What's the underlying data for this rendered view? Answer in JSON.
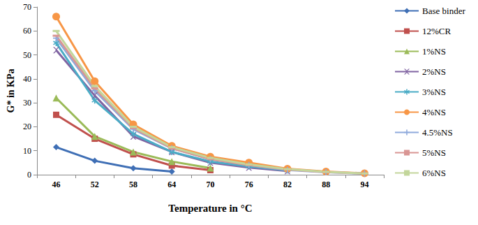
{
  "chart_data": {
    "type": "line",
    "x_label": "Temperature in °C",
    "y_label": "G* in KPa",
    "categories": [
      "46",
      "52",
      "58",
      "64",
      "70",
      "76",
      "82",
      "88",
      "94"
    ],
    "ylim": [
      0,
      70
    ],
    "yticks": [
      0,
      10,
      20,
      30,
      40,
      50,
      60,
      70
    ],
    "grid": false,
    "legend": "right",
    "series": [
      {
        "name": "Base binder",
        "color": "#3f6fb5",
        "marker": "diamond",
        "values": [
          11.5,
          5.8,
          2.7,
          1.3,
          null,
          null,
          null,
          null,
          null
        ]
      },
      {
        "name": "12%CR",
        "color": "#c0504d",
        "marker": "square",
        "values": [
          25,
          15,
          8.5,
          3.8,
          1.9,
          null,
          null,
          null,
          null
        ]
      },
      {
        "name": "1%NS",
        "color": "#9bbb59",
        "marker": "triangle",
        "values": [
          32,
          16,
          9.5,
          5.5,
          2.8,
          null,
          null,
          null,
          null
        ]
      },
      {
        "name": "2%NS",
        "color": "#8064a2",
        "marker": "x",
        "values": [
          52,
          33,
          16,
          9.5,
          5,
          3,
          1.5,
          null,
          null
        ]
      },
      {
        "name": "3%NS",
        "color": "#4bacc6",
        "marker": "star",
        "values": [
          55,
          31,
          17,
          9.5,
          5.5,
          3.5,
          1.8,
          null,
          null
        ]
      },
      {
        "name": "4%NS",
        "color": "#f79646",
        "marker": "circle",
        "values": [
          66,
          39,
          21,
          12,
          7.5,
          5,
          2.5,
          1.3,
          0.6
        ]
      },
      {
        "name": "4.5%NS",
        "color": "#8faadc",
        "marker": "plus",
        "values": [
          57,
          35,
          19,
          11,
          6.5,
          4,
          2,
          1,
          0.5
        ]
      },
      {
        "name": "5%NS",
        "color": "#d99694",
        "marker": "dash",
        "values": [
          58,
          36,
          19.5,
          11,
          6.5,
          4,
          2.2,
          1.1,
          0.5
        ]
      },
      {
        "name": "6%NS",
        "color": "#c3d69b",
        "marker": "dash",
        "values": [
          60,
          37,
          20,
          11.5,
          7,
          4.3,
          2.3,
          1.2,
          0.5
        ]
      }
    ]
  }
}
